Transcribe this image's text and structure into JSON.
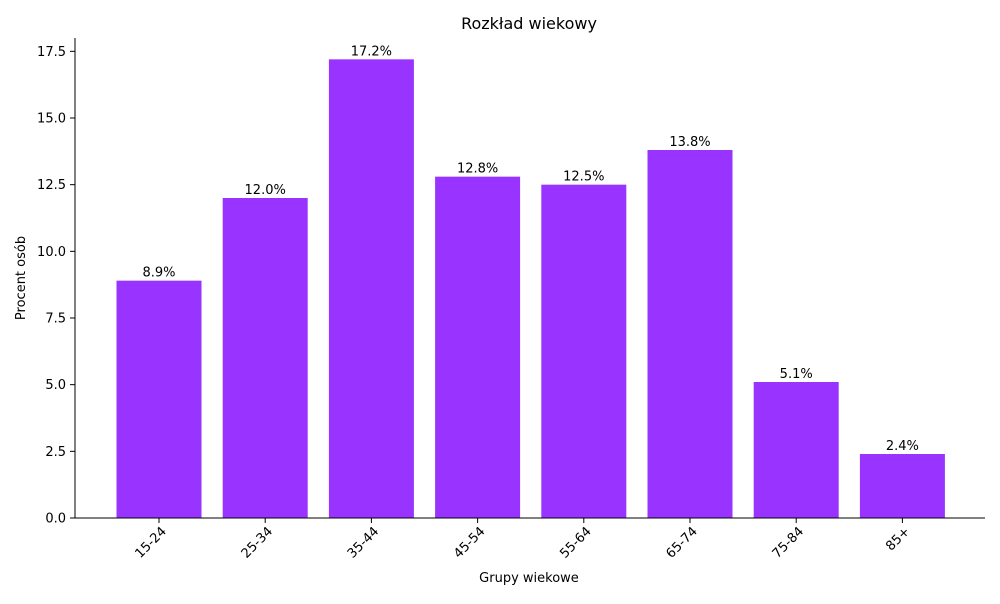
{
  "chart_data": {
    "type": "bar",
    "title": "Rozkład wiekowy",
    "xlabel": "Grupy wiekowe",
    "ylabel": "Procent osób",
    "categories": [
      "15-24",
      "25-34",
      "35-44",
      "45-54",
      "55-64",
      "65-74",
      "75-84",
      "85+"
    ],
    "values": [
      8.9,
      12.0,
      17.2,
      12.8,
      12.5,
      13.8,
      5.1,
      2.4
    ],
    "data_labels": [
      "8.9%",
      "12.0%",
      "17.2%",
      "12.8%",
      "12.5%",
      "13.8%",
      "5.1%",
      "2.4%"
    ],
    "ylim": [
      0,
      18
    ],
    "yticks": [
      "0.0",
      "2.5",
      "5.0",
      "7.5",
      "10.0",
      "12.5",
      "15.0",
      "17.5"
    ],
    "ytick_values": [
      0,
      2.5,
      5,
      7.5,
      10,
      12.5,
      15,
      17.5
    ],
    "bar_color": "#9933ff",
    "grid": false,
    "legend": "none"
  }
}
